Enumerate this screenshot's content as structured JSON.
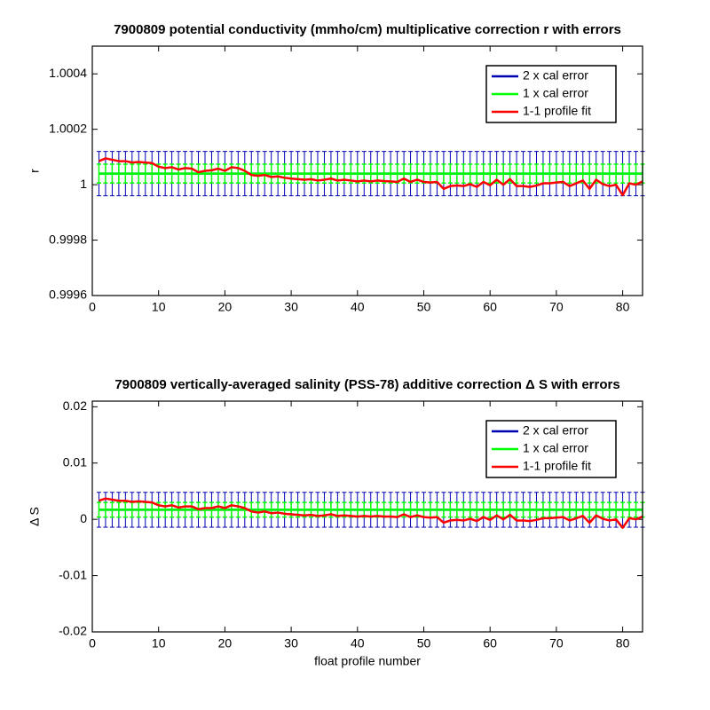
{
  "chart_data": [
    {
      "type": "line",
      "title": "7900809 potential conductivity (mmho/cm) multiplicative correction r with errors",
      "ylabel": "r",
      "x": [
        1,
        2,
        3,
        4,
        5,
        6,
        7,
        8,
        9,
        10,
        11,
        12,
        13,
        14,
        15,
        16,
        17,
        18,
        19,
        20,
        21,
        22,
        23,
        24,
        25,
        26,
        27,
        28,
        29,
        30,
        31,
        32,
        33,
        34,
        35,
        36,
        37,
        38,
        39,
        40,
        41,
        42,
        43,
        44,
        45,
        46,
        47,
        48,
        49,
        50,
        51,
        52,
        53,
        54,
        55,
        56,
        57,
        58,
        59,
        60,
        61,
        62,
        63,
        64,
        65,
        66,
        67,
        68,
        69,
        70,
        71,
        72,
        73,
        74,
        75,
        76,
        77,
        78,
        79,
        80,
        81,
        82,
        83
      ],
      "xlim": [
        0,
        83
      ],
      "xticks": [
        0,
        10,
        20,
        30,
        40,
        50,
        60,
        70,
        80
      ],
      "ylim": [
        0.9996,
        1.0005
      ],
      "yticks": [
        0.9996,
        0.9998,
        1,
        1.0002,
        1.0004
      ],
      "legend": "upper right",
      "series": [
        {
          "name": "2 x cal error",
          "color": "#0000b4",
          "value": 1.00004,
          "error": 8e-05
        },
        {
          "name": "1 x cal error",
          "color": "#00ff00",
          "value": 1.00004,
          "error": 3.4e-05
        },
        {
          "name": "1-1 profile fit",
          "color": "#ff0000",
          "values": [
            1.000085,
            1.000095,
            1.00009,
            1.000085,
            1.000085,
            1.00008,
            1.000082,
            1.00008,
            1.000078,
            1.000065,
            1.00006,
            1.000063,
            1.000055,
            1.00006,
            1.000058,
            1.000045,
            1.00005,
            1.000052,
            1.000058,
            1.00005,
            1.000063,
            1.00006,
            1.00005,
            1.000035,
            1.000032,
            1.000035,
            1.000028,
            1.00003,
            1.000025,
            1.000022,
            1.00002,
            1.000018,
            1.00002,
            1.000015,
            1.000018,
            1.000022,
            1.000015,
            1.000018,
            1.000015,
            1.000012,
            1.000015,
            1.000012,
            1.000015,
            1.000013,
            1.000012,
            1.00001,
            1.000022,
            1.00001,
            1.000018,
            1.00001,
            1.000008,
            1.00001,
            0.999985,
            0.999995,
            0.999997,
            0.999995,
            1.000002,
            0.999992,
            1.00001,
            0.999998,
            1.000018,
            1,
            1.00002,
            0.999995,
            0.999995,
            0.999992,
            0.999997,
            1.000005,
            1.000005,
            1.000008,
            1.00001,
            0.999995,
            1.000005,
            1.000015,
            0.999985,
            1.000018,
            1.000002,
            0.999995,
            1,
            0.999962,
            1.000005,
            1,
            1.000012
          ]
        }
      ]
    },
    {
      "type": "line",
      "title": "7900809 vertically-averaged salinity (PSS-78) additive correction Δ S with errors",
      "ylabel": "Δ S",
      "xlabel": "float profile number",
      "x": [
        1,
        2,
        3,
        4,
        5,
        6,
        7,
        8,
        9,
        10,
        11,
        12,
        13,
        14,
        15,
        16,
        17,
        18,
        19,
        20,
        21,
        22,
        23,
        24,
        25,
        26,
        27,
        28,
        29,
        30,
        31,
        32,
        33,
        34,
        35,
        36,
        37,
        38,
        39,
        40,
        41,
        42,
        43,
        44,
        45,
        46,
        47,
        48,
        49,
        50,
        51,
        52,
        53,
        54,
        55,
        56,
        57,
        58,
        59,
        60,
        61,
        62,
        63,
        64,
        65,
        66,
        67,
        68,
        69,
        70,
        71,
        72,
        73,
        74,
        75,
        76,
        77,
        78,
        79,
        80,
        81,
        82,
        83
      ],
      "xlim": [
        0,
        83
      ],
      "xticks": [
        0,
        10,
        20,
        30,
        40,
        50,
        60,
        70,
        80
      ],
      "ylim": [
        -0.02,
        0.021
      ],
      "yticks": [
        -0.02,
        -0.01,
        0,
        0.01,
        0.02
      ],
      "legend": "upper right",
      "series": [
        {
          "name": "2 x cal error",
          "color": "#0000b4",
          "value": 0.0017,
          "error": 0.0031
        },
        {
          "name": "1 x cal error",
          "color": "#00ff00",
          "value": 0.0017,
          "error": 0.0013
        },
        {
          "name": "1-1 profile fit",
          "color": "#ff0000",
          "values": [
            0.0033,
            0.0037,
            0.0035,
            0.0033,
            0.0033,
            0.0031,
            0.0032,
            0.0031,
            0.003,
            0.0025,
            0.0023,
            0.0025,
            0.0021,
            0.0023,
            0.0023,
            0.0018,
            0.002,
            0.002,
            0.0023,
            0.002,
            0.0025,
            0.0023,
            0.002,
            0.0014,
            0.0012,
            0.0014,
            0.0011,
            0.0012,
            0.001,
            0.0009,
            0.0008,
            0.0007,
            0.0008,
            0.0006,
            0.0007,
            0.0009,
            0.0006,
            0.0007,
            0.0006,
            0.0005,
            0.0006,
            0.0005,
            0.0006,
            0.0005,
            0.0005,
            0.0004,
            0.0009,
            0.0004,
            0.0007,
            0.0004,
            0.0003,
            0.0004,
            -0.0006,
            -0.0002,
            -0.0001,
            -0.0002,
            0.0001,
            -0.0003,
            0.0004,
            -0.0001,
            0.0007,
            0,
            0.0008,
            -0.0002,
            -0.0002,
            -0.0003,
            -0.0001,
            0.0002,
            0.0002,
            0.0003,
            0.0004,
            -0.0002,
            0.0002,
            0.0006,
            -0.0006,
            0.0007,
            0.0001,
            -0.0002,
            0,
            -0.0015,
            0.0002,
            0,
            0.0005
          ]
        }
      ]
    }
  ]
}
